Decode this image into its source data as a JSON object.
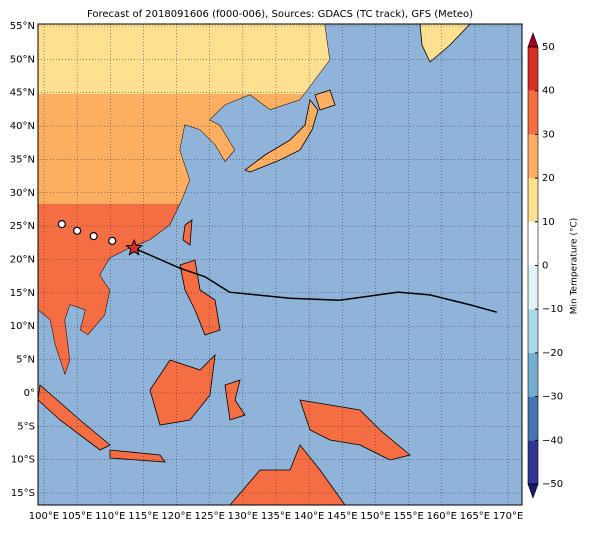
{
  "title": "Forecast of 2018091606 (f000-006), Sources: GDACS (TC track), GFS (Meteo)",
  "lon_ticks": [
    {
      "value": 100,
      "label": "100°E"
    },
    {
      "value": 105,
      "label": "105°E"
    },
    {
      "value": 110,
      "label": "110°E"
    },
    {
      "value": 115,
      "label": "115°E"
    },
    {
      "value": 120,
      "label": "120°E"
    },
    {
      "value": 125,
      "label": "125°E"
    },
    {
      "value": 130,
      "label": "130°E"
    },
    {
      "value": 135,
      "label": "135°E"
    },
    {
      "value": 140,
      "label": "140°E"
    },
    {
      "value": 145,
      "label": "145°E"
    },
    {
      "value": 150,
      "label": "150°E"
    },
    {
      "value": 155,
      "label": "155°E"
    },
    {
      "value": 160,
      "label": "160°E"
    },
    {
      "value": 165,
      "label": "165°E"
    },
    {
      "value": 170,
      "label": "170°E"
    }
  ],
  "lat_ticks": [
    {
      "value": 55,
      "label": "55°N"
    },
    {
      "value": 50,
      "label": "50°N"
    },
    {
      "value": 45,
      "label": "45°N"
    },
    {
      "value": 40,
      "label": "40°N"
    },
    {
      "value": 35,
      "label": "35°N"
    },
    {
      "value": 30,
      "label": "30°N"
    },
    {
      "value": 25,
      "label": "25°N"
    },
    {
      "value": 20,
      "label": "20°N"
    },
    {
      "value": 15,
      "label": "15°N"
    },
    {
      "value": 10,
      "label": "10°N"
    },
    {
      "value": 5,
      "label": "5°N"
    },
    {
      "value": 0,
      "label": "0°"
    },
    {
      "value": -5,
      "label": "5°S"
    },
    {
      "value": -10,
      "label": "10°S"
    },
    {
      "value": -15,
      "label": "15°S"
    }
  ],
  "lonlim": [
    99.1,
    172.1
  ],
  "latlim": [
    55.3,
    -16.8
  ],
  "colorbar": {
    "label": "Min Temperature (°C)",
    "lim": [
      -50,
      50
    ],
    "ticks": [
      {
        "value": -50,
        "label": "−50"
      },
      {
        "value": -40,
        "label": "−40"
      },
      {
        "value": -30,
        "label": "−30"
      },
      {
        "value": -20,
        "label": "−20"
      },
      {
        "value": -10,
        "label": "−10"
      },
      0,
      10,
      20,
      30,
      40,
      50
    ],
    "colors": [
      "#313695",
      "#4575b4",
      "#74add1",
      "#abd9e9",
      "#e0f3f8",
      "#ffffff",
      "#fee090",
      "#fdae61",
      "#f46d43",
      "#d73027"
    ],
    "under": "#1a1a6e",
    "over": "#a50026"
  },
  "track": {
    "lon": [
      113.6,
      120.5,
      124.3,
      128.0,
      137.1,
      144.6,
      153.4,
      158.2,
      164.3,
      168.3
    ],
    "lat": [
      21.7,
      18.7,
      17.4,
      15.1,
      14.2,
      13.9,
      15.1,
      14.7,
      13.2,
      12.1
    ]
  },
  "past_positions": {
    "lon": [
      102.7,
      105.0,
      107.5,
      110.3
    ],
    "lat": [
      25.3,
      24.3,
      23.5,
      22.8
    ]
  }
}
